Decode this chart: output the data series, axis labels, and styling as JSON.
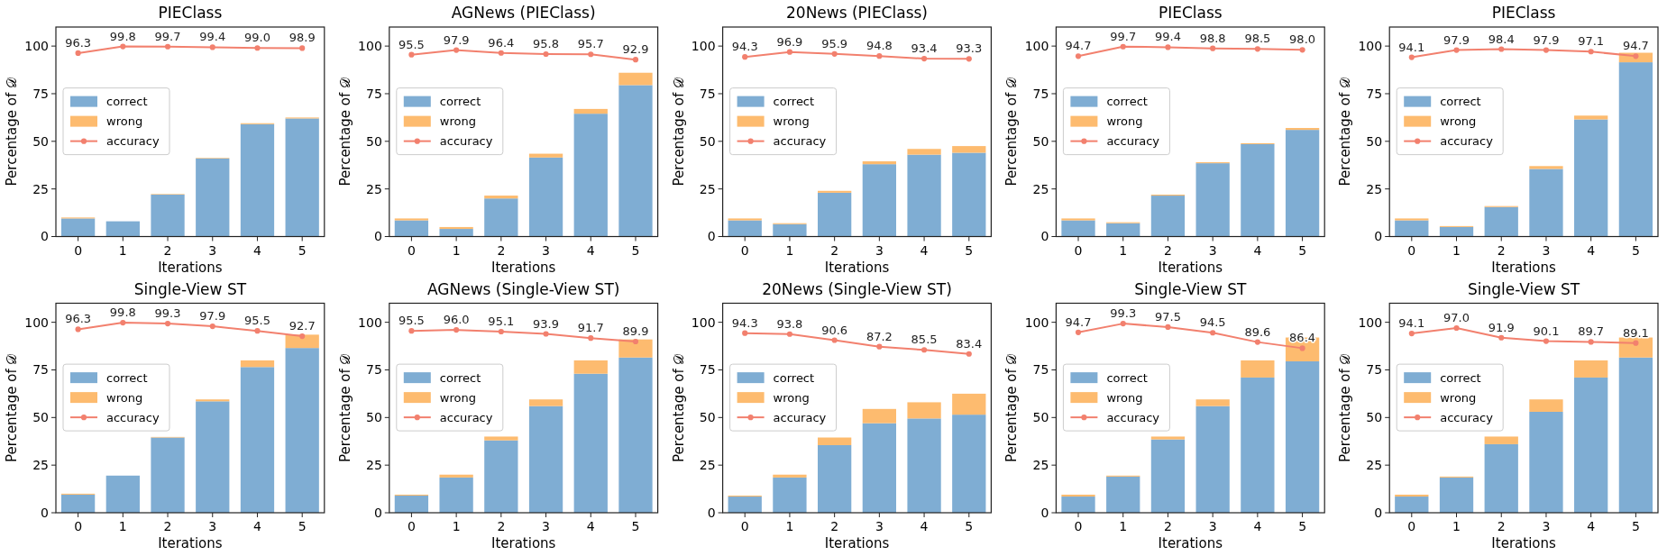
{
  "chart_data": [
    {
      "type": "bar",
      "title": "PIEClass",
      "xlabel": "Iterations",
      "ylabel": "Percentage of 𝒟",
      "categories": [
        "0",
        "1",
        "2",
        "3",
        "4",
        "5"
      ],
      "stacked": true,
      "ylim": [
        0,
        110
      ],
      "yticks": [
        0,
        25,
        50,
        75,
        100
      ],
      "legend": "center left",
      "marker": "circle",
      "series": [
        {
          "name": "correct",
          "color": "#7fadd3",
          "values": [
            9.5,
            8,
            22,
            41,
            59,
            62
          ]
        },
        {
          "name": "wrong",
          "color": "#fdbb6f",
          "values": [
            0.5,
            0,
            0.3,
            0.3,
            0.5,
            0.5
          ]
        },
        {
          "name": "accuracy",
          "type": "line",
          "color": "#f2806e",
          "values": [
            96.3,
            99.8,
            99.7,
            99.4,
            99.0,
            98.9
          ],
          "value_labels": [
            "96.3",
            "99.8",
            "99.7",
            "99.4",
            "99.0",
            "98.9"
          ]
        }
      ]
    },
    {
      "type": "bar",
      "title": "AGNews (PIEClass)",
      "xlabel": "Iterations",
      "ylabel": "Percentage of 𝒟",
      "categories": [
        "0",
        "1",
        "2",
        "3",
        "4",
        "5"
      ],
      "stacked": true,
      "ylim": [
        0,
        110
      ],
      "yticks": [
        0,
        25,
        50,
        75,
        100
      ],
      "legend": "center left",
      "marker": "circle",
      "series": [
        {
          "name": "correct",
          "color": "#7fadd3",
          "values": [
            8.5,
            4,
            20,
            41.5,
            64.5,
            79.5
          ]
        },
        {
          "name": "wrong",
          "color": "#fdbb6f",
          "values": [
            1,
            1,
            1.5,
            2,
            2.5,
            6.5
          ]
        },
        {
          "name": "accuracy",
          "type": "line",
          "color": "#f2806e",
          "values": [
            95.5,
            97.9,
            96.4,
            95.8,
            95.7,
            92.9
          ],
          "value_labels": [
            "95.5",
            "97.9",
            "96.4",
            "95.8",
            "95.7",
            "92.9"
          ]
        }
      ]
    },
    {
      "type": "bar",
      "title": "20News (PIEClass)",
      "xlabel": "Iterations",
      "ylabel": "Percentage of 𝒟",
      "categories": [
        "0",
        "1",
        "2",
        "3",
        "4",
        "5"
      ],
      "stacked": true,
      "ylim": [
        0,
        110
      ],
      "yticks": [
        0,
        25,
        50,
        75,
        100
      ],
      "legend": "center left",
      "marker": "circle",
      "series": [
        {
          "name": "correct",
          "color": "#7fadd3",
          "values": [
            8.5,
            6.5,
            23,
            38,
            43,
            44
          ]
        },
        {
          "name": "wrong",
          "color": "#fdbb6f",
          "values": [
            1,
            0.5,
            1,
            1.5,
            3,
            3.5
          ]
        },
        {
          "name": "accuracy",
          "type": "line",
          "color": "#f2806e",
          "values": [
            94.3,
            96.9,
            95.9,
            94.8,
            93.4,
            93.3
          ],
          "value_labels": [
            "94.3",
            "96.9",
            "95.9",
            "94.8",
            "93.4",
            "93.3"
          ]
        }
      ]
    },
    {
      "type": "bar",
      "title": "PIEClass",
      "xlabel": "Iterations",
      "ylabel": "Percentage of 𝒟",
      "categories": [
        "0",
        "1",
        "2",
        "3",
        "4",
        "5"
      ],
      "stacked": true,
      "ylim": [
        0,
        110
      ],
      "yticks": [
        0,
        25,
        50,
        75,
        100
      ],
      "legend": "center left",
      "marker": "circle",
      "series": [
        {
          "name": "correct",
          "color": "#7fadd3",
          "values": [
            8.5,
            7,
            21.5,
            38.5,
            48.5,
            56
          ]
        },
        {
          "name": "wrong",
          "color": "#fdbb6f",
          "values": [
            1,
            0.5,
            0.5,
            0.5,
            0.5,
            1
          ]
        },
        {
          "name": "accuracy",
          "type": "line",
          "color": "#f2806e",
          "values": [
            94.7,
            99.7,
            99.4,
            98.8,
            98.5,
            98.0
          ],
          "value_labels": [
            "94.7",
            "99.7",
            "99.4",
            "98.8",
            "98.5",
            "98.0"
          ]
        }
      ]
    },
    {
      "type": "bar",
      "title": "PIEClass",
      "xlabel": "Iterations",
      "ylabel": "Percentage of 𝒟",
      "categories": [
        "0",
        "1",
        "2",
        "3",
        "4",
        "5"
      ],
      "stacked": true,
      "ylim": [
        0,
        110
      ],
      "yticks": [
        0,
        25,
        50,
        75,
        100
      ],
      "legend": "center left",
      "marker": "circle",
      "series": [
        {
          "name": "correct",
          "color": "#7fadd3",
          "values": [
            8.5,
            5,
            15.5,
            35.5,
            61.5,
            91.5
          ]
        },
        {
          "name": "wrong",
          "color": "#fdbb6f",
          "values": [
            1,
            0.5,
            0.5,
            1.5,
            2,
            5
          ]
        },
        {
          "name": "accuracy",
          "type": "line",
          "color": "#f2806e",
          "values": [
            94.1,
            97.9,
            98.4,
            97.9,
            97.1,
            94.7
          ],
          "value_labels": [
            "94.1",
            "97.9",
            "98.4",
            "97.9",
            "97.1",
            "94.7"
          ]
        }
      ]
    },
    {
      "type": "bar",
      "title": "Single-View ST",
      "xlabel": "Iterations",
      "ylabel": "Percentage of 𝒟",
      "categories": [
        "0",
        "1",
        "2",
        "3",
        "4",
        "5"
      ],
      "stacked": true,
      "ylim": [
        0,
        110
      ],
      "yticks": [
        0,
        25,
        50,
        75,
        100
      ],
      "legend": "center left",
      "marker": "circle",
      "series": [
        {
          "name": "correct",
          "color": "#7fadd3",
          "values": [
            9.5,
            19.5,
            39.5,
            58.5,
            76.5,
            86.5
          ]
        },
        {
          "name": "wrong",
          "color": "#fdbb6f",
          "values": [
            0.5,
            0,
            0.3,
            1,
            3.5,
            7
          ]
        },
        {
          "name": "accuracy",
          "type": "line",
          "color": "#f2806e",
          "values": [
            96.3,
            99.8,
            99.3,
            97.9,
            95.5,
            92.7
          ],
          "value_labels": [
            "96.3",
            "99.8",
            "99.3",
            "97.9",
            "95.5",
            "92.7"
          ]
        }
      ]
    },
    {
      "type": "bar",
      "title": "AGNews (Single-View ST)",
      "xlabel": "Iterations",
      "ylabel": "Percentage of 𝒟",
      "categories": [
        "0",
        "1",
        "2",
        "3",
        "4",
        "5"
      ],
      "stacked": true,
      "ylim": [
        0,
        110
      ],
      "yticks": [
        0,
        25,
        50,
        75,
        100
      ],
      "legend": "center left",
      "marker": "circle",
      "series": [
        {
          "name": "correct",
          "color": "#7fadd3",
          "values": [
            9,
            18.5,
            38,
            56,
            73,
            81.5
          ]
        },
        {
          "name": "wrong",
          "color": "#fdbb6f",
          "values": [
            0.5,
            1.5,
            2,
            3.5,
            7,
            9.5
          ]
        },
        {
          "name": "accuracy",
          "type": "line",
          "color": "#f2806e",
          "values": [
            95.5,
            96.0,
            95.1,
            93.9,
            91.7,
            89.9
          ],
          "value_labels": [
            "95.5",
            "96.0",
            "95.1",
            "93.9",
            "91.7",
            "89.9"
          ]
        }
      ]
    },
    {
      "type": "bar",
      "title": "20News (Single-View ST)",
      "xlabel": "Iterations",
      "ylabel": "Percentage of 𝒟",
      "categories": [
        "0",
        "1",
        "2",
        "3",
        "4",
        "5"
      ],
      "stacked": true,
      "ylim": [
        0,
        110
      ],
      "yticks": [
        0,
        25,
        50,
        75,
        100
      ],
      "legend": "center left",
      "marker": "circle",
      "series": [
        {
          "name": "correct",
          "color": "#7fadd3",
          "values": [
            8.5,
            18.5,
            35.5,
            47,
            49.5,
            51.5
          ]
        },
        {
          "name": "wrong",
          "color": "#fdbb6f",
          "values": [
            0.5,
            1.5,
            4,
            7.5,
            8.5,
            11
          ]
        },
        {
          "name": "accuracy",
          "type": "line",
          "color": "#f2806e",
          "values": [
            94.3,
            93.8,
            90.6,
            87.2,
            85.5,
            83.4
          ],
          "value_labels": [
            "94.3",
            "93.8",
            "90.6",
            "87.2",
            "85.5",
            "83.4"
          ]
        }
      ]
    },
    {
      "type": "bar",
      "title": "Single-View ST",
      "xlabel": "Iterations",
      "ylabel": "Percentage of 𝒟",
      "categories": [
        "0",
        "1",
        "2",
        "3",
        "4",
        "5"
      ],
      "stacked": true,
      "ylim": [
        0,
        110
      ],
      "yticks": [
        0,
        25,
        50,
        75,
        100
      ],
      "legend": "center left",
      "marker": "circle",
      "series": [
        {
          "name": "correct",
          "color": "#7fadd3",
          "values": [
            8.5,
            19,
            38.5,
            56,
            71,
            79.5
          ]
        },
        {
          "name": "wrong",
          "color": "#fdbb6f",
          "values": [
            1,
            0.5,
            1.5,
            3.5,
            9,
            12.5
          ]
        },
        {
          "name": "accuracy",
          "type": "line",
          "color": "#f2806e",
          "values": [
            94.7,
            99.3,
            97.5,
            94.5,
            89.6,
            86.4
          ],
          "value_labels": [
            "94.7",
            "99.3",
            "97.5",
            "94.5",
            "89.6",
            "86.4"
          ]
        }
      ]
    },
    {
      "type": "bar",
      "title": "Single-View ST",
      "xlabel": "Iterations",
      "ylabel": "Percentage of 𝒟",
      "categories": [
        "0",
        "1",
        "2",
        "3",
        "4",
        "5"
      ],
      "stacked": true,
      "ylim": [
        0,
        110
      ],
      "yticks": [
        0,
        25,
        50,
        75,
        100
      ],
      "legend": "center left",
      "marker": "circle",
      "series": [
        {
          "name": "correct",
          "color": "#7fadd3",
          "values": [
            8.5,
            18.5,
            36,
            53,
            71,
            81.5
          ]
        },
        {
          "name": "wrong",
          "color": "#fdbb6f",
          "values": [
            1,
            0.5,
            4,
            6.5,
            9,
            10.5
          ]
        },
        {
          "name": "accuracy",
          "type": "line",
          "color": "#f2806e",
          "values": [
            94.1,
            97.0,
            91.9,
            90.1,
            89.7,
            89.1
          ],
          "value_labels": [
            "94.1",
            "97.0",
            "91.9",
            "90.1",
            "89.7",
            "89.1"
          ]
        }
      ]
    }
  ]
}
